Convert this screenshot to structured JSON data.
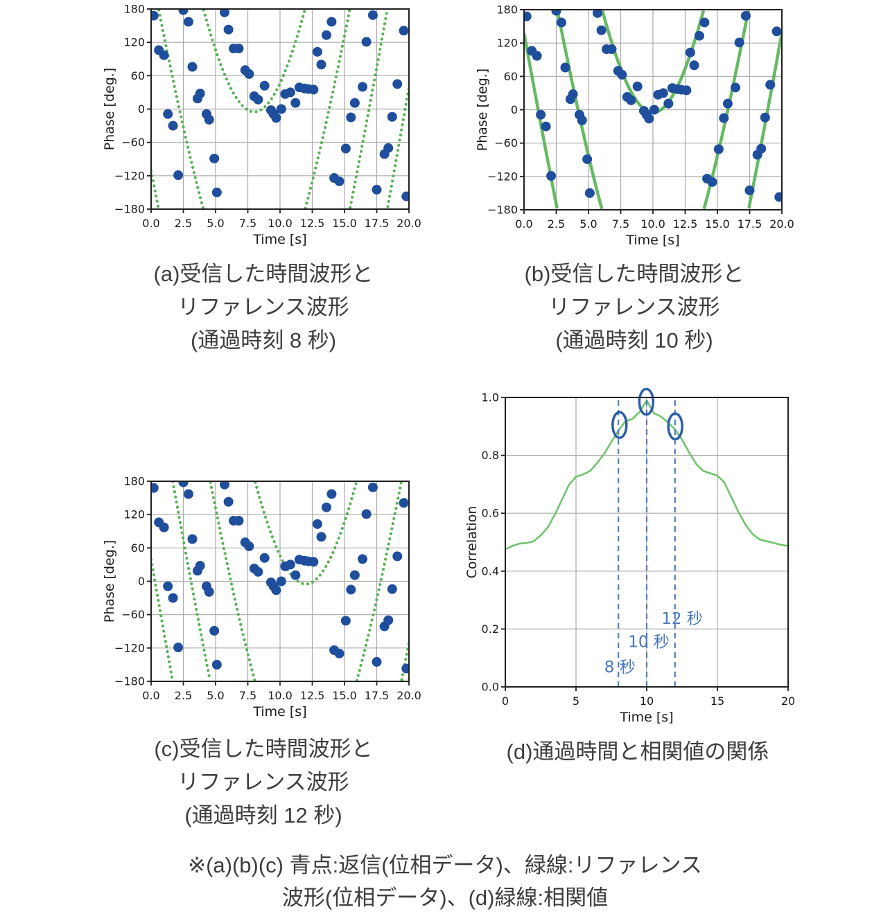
{
  "colors": {
    "scatter_blue": "#1f4e9d",
    "ref_green": "#55b351",
    "corr_green": "#6fc46b",
    "grid": "#aaaaaa",
    "axis": "#1f1f1f",
    "axis_text": "#1a1a1a",
    "dashed_blue": "#4f7dbf",
    "ellipse_blue": "#2c5ea8",
    "label_blue": "#4878bf"
  },
  "captions": {
    "a": {
      "lines": [
        "(a)受信した時間波形と",
        "リファレンス波形",
        "(通過時刻 8 秒)"
      ]
    },
    "b": {
      "lines": [
        "(b)受信した時間波形と",
        "リファレンス波形",
        "(通過時刻 10 秒)"
      ]
    },
    "c": {
      "lines": [
        "(c)受信した時間波形と",
        "リファレンス波形",
        "(通過時刻 12 秒)"
      ]
    },
    "d": {
      "lines": [
        "(d)通過時間と相関値の関係"
      ]
    }
  },
  "footnote": {
    "lines": [
      "※(a)(b)(c) 青点:返信(位相データ)、緑線:リファレンス",
      "波形(位相データ)、(d)緑線:相関値"
    ]
  },
  "shared": {
    "ref_model": {
      "C": 146,
      "h": 5.5,
      "p0": -5
    },
    "scatter": [
      [
        0.2,
        168
      ],
      [
        0.6,
        106
      ],
      [
        1.0,
        97
      ],
      [
        1.3,
        -9
      ],
      [
        1.7,
        -30
      ],
      [
        2.1,
        -119
      ],
      [
        2.5,
        178
      ],
      [
        2.9,
        157
      ],
      [
        3.2,
        76
      ],
      [
        3.6,
        19
      ],
      [
        3.8,
        28
      ],
      [
        4.3,
        -9
      ],
      [
        4.5,
        -19
      ],
      [
        4.9,
        -89
      ],
      [
        5.1,
        -150
      ],
      [
        5.7,
        174
      ],
      [
        6.0,
        143
      ],
      [
        6.4,
        109
      ],
      [
        6.8,
        109
      ],
      [
        7.3,
        70
      ],
      [
        7.6,
        63
      ],
      [
        8.0,
        23
      ],
      [
        8.3,
        17
      ],
      [
        8.8,
        42
      ],
      [
        9.3,
        -2
      ],
      [
        9.5,
        -9
      ],
      [
        9.7,
        -16
      ],
      [
        10.1,
        0
      ],
      [
        10.4,
        27
      ],
      [
        10.8,
        30
      ],
      [
        11.2,
        11
      ],
      [
        11.5,
        39
      ],
      [
        11.9,
        37
      ],
      [
        12.2,
        36
      ],
      [
        12.6,
        35
      ],
      [
        12.9,
        103
      ],
      [
        13.2,
        80
      ],
      [
        13.6,
        133
      ],
      [
        14.0,
        157
      ],
      [
        14.2,
        -124
      ],
      [
        14.6,
        -130
      ],
      [
        15.1,
        -71
      ],
      [
        15.5,
        -15
      ],
      [
        15.8,
        11
      ],
      [
        16.4,
        40
      ],
      [
        16.7,
        121
      ],
      [
        17.2,
        169
      ],
      [
        17.5,
        -145
      ],
      [
        18.1,
        -81
      ],
      [
        18.4,
        -70
      ],
      [
        18.7,
        -14
      ],
      [
        19.1,
        45
      ],
      [
        19.6,
        141
      ],
      [
        19.8,
        -157
      ]
    ]
  },
  "chart_data": [
    {
      "id": "a",
      "type": "scatter-phase",
      "xlabel": "Time [s]",
      "ylabel": "Phase [deg.]",
      "xlim": [
        0,
        20
      ],
      "ylim": [
        -180,
        180
      ],
      "grid": true,
      "xticks": {
        "values": [
          0,
          2.5,
          5,
          7.5,
          10,
          12.5,
          15,
          17.5,
          20
        ],
        "labels": [
          "0.0",
          "2.5",
          "5.0",
          "7.5",
          "10.0",
          "12.5",
          "15.0",
          "17.5",
          "20.0"
        ]
      },
      "yticks": {
        "values": [
          180,
          120,
          60,
          0,
          -60,
          -120,
          -180
        ],
        "labels": [
          "180",
          "120",
          "60",
          "0",
          "−60",
          "−120",
          "−180"
        ]
      },
      "ref": {
        "center": 8,
        "style": "dotted"
      },
      "legend_note": "blue dots: received phase data, green dotted: reference (pass time 8 s)"
    },
    {
      "id": "b",
      "type": "scatter-phase",
      "xlabel": "Time [s]",
      "ylabel": "Phase [deg.]",
      "xlim": [
        0,
        20
      ],
      "ylim": [
        -180,
        180
      ],
      "grid": true,
      "xticks": {
        "values": [
          0,
          2.5,
          5,
          7.5,
          10,
          12.5,
          15,
          17.5,
          20
        ],
        "labels": [
          "0.0",
          "2.5",
          "5.0",
          "7.5",
          "10.0",
          "12.5",
          "15.0",
          "17.5",
          "20.0"
        ]
      },
      "yticks": {
        "values": [
          180,
          120,
          60,
          0,
          -60,
          -120,
          -180
        ],
        "labels": [
          "180",
          "120",
          "60",
          "0",
          "−60",
          "−120",
          "−180"
        ]
      },
      "ref": {
        "center": 10,
        "style": "solid"
      },
      "legend_note": "blue dots: received phase data, green solid: reference (pass time 10 s)"
    },
    {
      "id": "c",
      "type": "scatter-phase",
      "xlabel": "Time [s]",
      "ylabel": "Phase [deg.]",
      "xlim": [
        0,
        20
      ],
      "ylim": [
        -180,
        180
      ],
      "grid": true,
      "xticks": {
        "values": [
          0,
          2.5,
          5,
          7.5,
          10,
          12.5,
          15,
          17.5,
          20
        ],
        "labels": [
          "0.0",
          "2.5",
          "5.0",
          "7.5",
          "10.0",
          "12.5",
          "15.0",
          "17.5",
          "20.0"
        ]
      },
      "yticks": {
        "values": [
          180,
          120,
          60,
          0,
          -60,
          -120,
          -180
        ],
        "labels": [
          "180",
          "120",
          "60",
          "0",
          "−60",
          "−120",
          "−180"
        ]
      },
      "ref": {
        "center": 12,
        "style": "dotted"
      },
      "legend_note": "blue dots: received phase data, green dotted: reference (pass time 12 s)"
    },
    {
      "id": "d",
      "type": "line",
      "xlabel": "Time [s]",
      "ylabel": "Correlation",
      "xlim": [
        0,
        20
      ],
      "ylim": [
        0,
        1
      ],
      "grid": true,
      "xticks": {
        "values": [
          0,
          5,
          10,
          15,
          20
        ],
        "labels": [
          "0",
          "5",
          "10",
          "15",
          "20"
        ]
      },
      "yticks": {
        "values": [
          0,
          0.2,
          0.4,
          0.6,
          0.8,
          1
        ],
        "labels": [
          "0.0",
          "0.2",
          "0.4",
          "0.6",
          "0.8",
          "1.0"
        ]
      },
      "x": [
        0,
        0.5,
        1,
        1.5,
        2,
        2.5,
        3,
        3.5,
        4,
        4.5,
        5,
        5.5,
        6,
        6.5,
        7,
        7.5,
        8,
        8.5,
        9,
        9.5,
        10,
        10.5,
        11,
        11.5,
        12,
        12.5,
        13,
        13.5,
        14,
        14.5,
        15,
        15.5,
        16,
        16.5,
        17,
        17.5,
        18,
        18.5,
        19,
        19.5,
        20
      ],
      "y": [
        0.475,
        0.487,
        0.495,
        0.497,
        0.503,
        0.523,
        0.551,
        0.595,
        0.646,
        0.698,
        0.726,
        0.734,
        0.746,
        0.774,
        0.806,
        0.846,
        0.886,
        0.918,
        0.926,
        0.95,
        0.99,
        0.946,
        0.934,
        0.914,
        0.89,
        0.854,
        0.81,
        0.77,
        0.746,
        0.738,
        0.73,
        0.706,
        0.654,
        0.603,
        0.559,
        0.527,
        0.509,
        0.503,
        0.497,
        0.491,
        0.487
      ],
      "marks": [
        {
          "t": 8,
          "label": "8 秒",
          "label_at": [
            8.1,
            0.05
          ],
          "ellipse_at": [
            8.08,
            0.905
          ]
        },
        {
          "t": 10,
          "label": "10 秒",
          "label_at": [
            10.15,
            0.138
          ],
          "ellipse_at": [
            9.97,
            0.985
          ]
        },
        {
          "t": 12,
          "label": "12 秒",
          "label_at": [
            12.5,
            0.218
          ],
          "ellipse_at": [
            12.02,
            0.9
          ]
        }
      ]
    }
  ]
}
